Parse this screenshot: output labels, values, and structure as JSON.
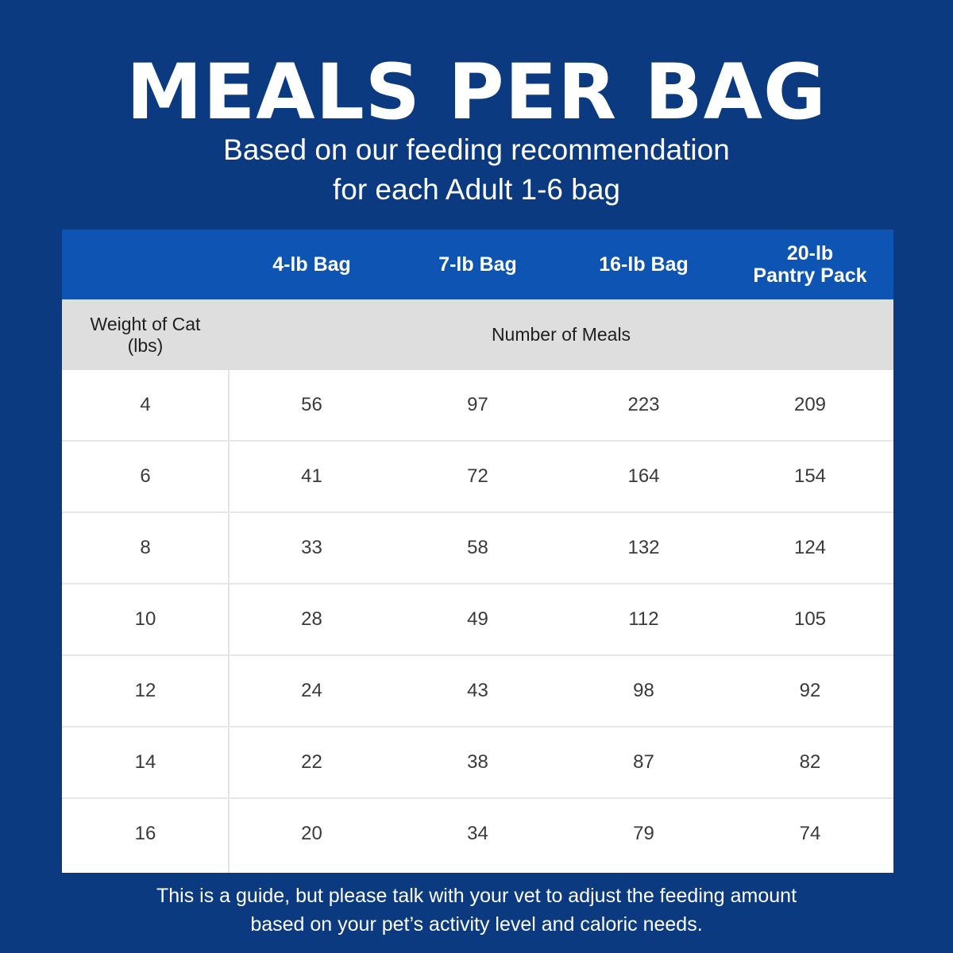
{
  "title": "MEALS PER BAG",
  "subtitle": {
    "line1": "Based on our feeding recommendation",
    "line2": "for each Adult 1-6 bag"
  },
  "table": {
    "columns": [
      "4-lb Bag",
      "7-lb Bag",
      "16-lb Bag"
    ],
    "last_column": {
      "line1": "20-lb",
      "line2": "Pantry Pack"
    },
    "weight_header": {
      "line1": "Weight of Cat",
      "line2": "(lbs)"
    },
    "meals_header": "Number of Meals",
    "rows": [
      {
        "weight": "4",
        "values": [
          "56",
          "97",
          "223",
          "209"
        ]
      },
      {
        "weight": "6",
        "values": [
          "41",
          "72",
          "164",
          "154"
        ]
      },
      {
        "weight": "8",
        "values": [
          "33",
          "58",
          "132",
          "124"
        ]
      },
      {
        "weight": "10",
        "values": [
          "28",
          "49",
          "112",
          "105"
        ]
      },
      {
        "weight": "12",
        "values": [
          "24",
          "43",
          "98",
          "92"
        ]
      },
      {
        "weight": "14",
        "values": [
          "22",
          "38",
          "87",
          "82"
        ]
      },
      {
        "weight": "16",
        "values": [
          "20",
          "34",
          "79",
          "74"
        ]
      }
    ]
  },
  "footer": {
    "line1": "This is a guide, but please talk with your vet to adjust the feeding amount",
    "line2": "based on your pet’s activity level and caloric needs."
  },
  "colors": {
    "background": "#0b3a80",
    "header_blue": "#0d54b3",
    "subheader_gray": "#dedede"
  }
}
